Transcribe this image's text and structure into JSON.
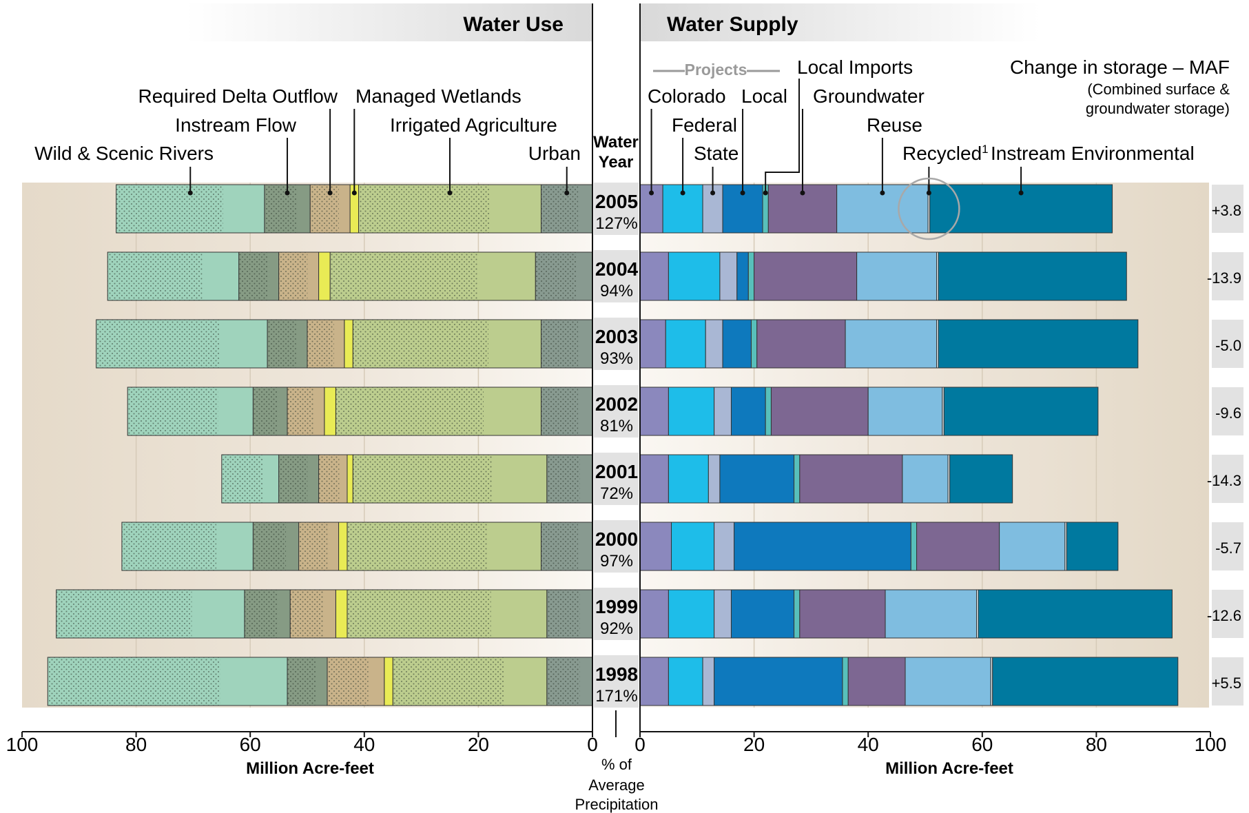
{
  "chart_data": {
    "type": "bar",
    "layout": "back-to-back stacked horizontal bars",
    "headers": {
      "left": "Water Use",
      "right": "Water Supply"
    },
    "years": [
      {
        "year": "2005",
        "precip": "127%",
        "storage": "+3.8"
      },
      {
        "year": "2004",
        "precip": "94%",
        "storage": "-13.9"
      },
      {
        "year": "2003",
        "precip": "93%",
        "storage": "-5.0"
      },
      {
        "year": "2002",
        "precip": "81%",
        "storage": "-9.6"
      },
      {
        "year": "2001",
        "precip": "72%",
        "storage": "-14.3"
      },
      {
        "year": "2000",
        "precip": "97%",
        "storage": "-5.7"
      },
      {
        "year": "1999",
        "precip": "92%",
        "storage": "-12.6"
      },
      {
        "year": "1998",
        "precip": "171%",
        "storage": "+5.5"
      }
    ],
    "water_use": {
      "xlabel": "Million Acre-feet",
      "xlim": [
        100,
        0
      ],
      "ticks": [
        "100",
        "80",
        "60",
        "40",
        "20",
        "0"
      ],
      "series": [
        {
          "name": "Urban",
          "color": "#889a90",
          "values": [
            9,
            10,
            9,
            9,
            8,
            9,
            8,
            8
          ]
        },
        {
          "name": "Irrigated Agriculture",
          "color": "#bccd8e",
          "values": [
            32,
            36,
            33,
            36,
            34,
            34,
            35,
            27
          ]
        },
        {
          "name": "Managed Wetlands",
          "color": "#e9eb55",
          "values": [
            1.5,
            2,
            1.5,
            2,
            1,
            1.5,
            2,
            1.5
          ]
        },
        {
          "name": "Required Delta Outflow",
          "color": "#c9b38a",
          "values": [
            7,
            7,
            6.5,
            6.5,
            5,
            7,
            8,
            10
          ]
        },
        {
          "name": "Instream Flow",
          "color": "#869b84",
          "values": [
            8,
            7,
            7,
            6,
            7,
            8,
            8,
            7
          ]
        },
        {
          "name": "Wild & Scenic Rivers",
          "color": "#9fd3bc",
          "values": [
            26,
            23,
            30,
            22,
            10,
            23,
            33,
            42
          ]
        }
      ],
      "labels": {
        "wild_scenic": "Wild & Scenic Rivers",
        "instream": "Instream Flow",
        "delta": "Required Delta Outflow",
        "wetlands": "Managed Wetlands",
        "agriculture": "Irrigated Agriculture",
        "urban": "Urban"
      }
    },
    "water_supply": {
      "xlabel": "Million Acre-feet",
      "xlim": [
        0,
        100
      ],
      "ticks": [
        "0",
        "20",
        "40",
        "60",
        "80",
        "100"
      ],
      "series": [
        {
          "name": "Colorado",
          "color": "#8b88bd",
          "values": [
            4,
            5,
            4.5,
            5,
            5,
            5.5,
            5,
            5
          ]
        },
        {
          "name": "Federal",
          "color": "#1ebde9",
          "values": [
            7,
            9,
            7,
            8,
            7,
            7.5,
            8,
            6
          ]
        },
        {
          "name": "State",
          "color": "#a9b7d4",
          "values": [
            3.5,
            3,
            3,
            3,
            2,
            3.5,
            3,
            2
          ]
        },
        {
          "name": "Local",
          "color": "#0e79bd",
          "values": [
            7,
            2,
            5,
            6,
            13,
            31,
            11,
            22.5
          ]
        },
        {
          "name": "Local Imports",
          "color": "#58c0bb",
          "values": [
            1,
            1,
            1,
            1,
            1,
            1,
            1,
            1
          ]
        },
        {
          "name": "Groundwater",
          "color": "#7d6792",
          "values": [
            12,
            18,
            15.5,
            17,
            18,
            14.5,
            15,
            10
          ]
        },
        {
          "name": "Reuse",
          "color": "#7fbde0",
          "values": [
            16,
            14,
            16,
            13,
            8,
            11.5,
            16,
            15
          ]
        },
        {
          "name": "Recycled",
          "color": "#e2eef3",
          "values": [
            0.3,
            0.3,
            0.3,
            0.3,
            0.3,
            0.3,
            0.3,
            0.3
          ]
        },
        {
          "name": "Instream Environmental",
          "color": "#00799f",
          "values": [
            32,
            33,
            35,
            27,
            11,
            9,
            34,
            32.5
          ]
        }
      ],
      "labels": {
        "projects": "Projects",
        "colorado": "Colorado",
        "federal": "Federal",
        "state": "State",
        "local": "Local",
        "local_imports": "Local Imports",
        "groundwater": "Groundwater",
        "reuse": "Reuse",
        "recycled": "Recycled",
        "recycled_note": "1",
        "instream_env": "Instream Environmental"
      }
    },
    "center": {
      "header_line1": "Water",
      "header_line2": "Year",
      "footer_line1": "% of",
      "footer_line2": "Average",
      "footer_line3": "Precipitation"
    },
    "storage": {
      "title": "Change in storage – MAF",
      "subtitle_line1": "(Combined surface &",
      "subtitle_line2": "groundwater storage)"
    },
    "colors": {
      "panel_bg": "#e5dac9",
      "band_dark": "#cfc3ae",
      "box_bg": "#e2e2e2",
      "marker": "#1a1a1a"
    }
  }
}
